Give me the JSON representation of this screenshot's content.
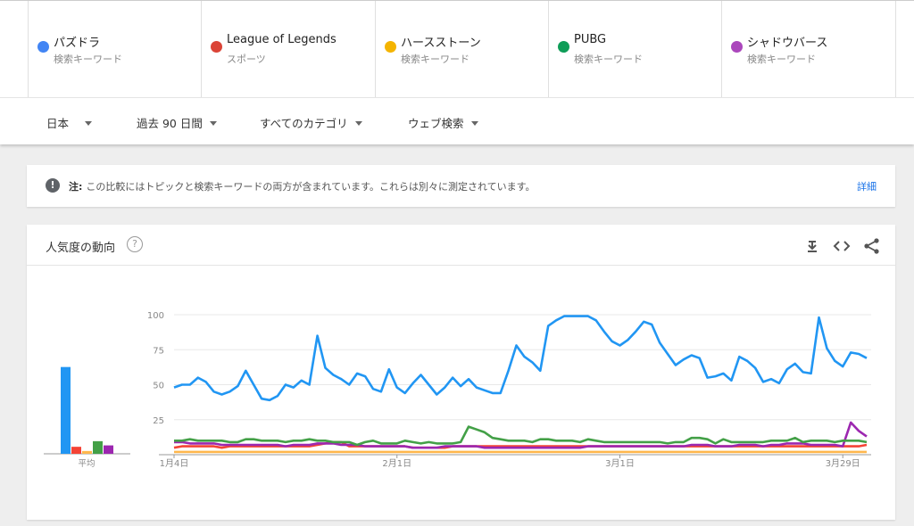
{
  "terms": [
    {
      "name": "パズドラ",
      "type": "検索キーワード",
      "color": "#4285f4"
    },
    {
      "name": "League of Legends",
      "type": "スポーツ",
      "color": "#db4437"
    },
    {
      "name": "ハースストーン",
      "type": "検索キーワード",
      "color": "#f4b400"
    },
    {
      "name": "PUBG",
      "type": "検索キーワード",
      "color": "#0f9d58"
    },
    {
      "name": "シャドウバース",
      "type": "検索キーワード",
      "color": "#ab47bc"
    }
  ],
  "filters": {
    "region": "日本",
    "period": "過去 90 日間",
    "category": "すべてのカテゴリ",
    "search_type": "ウェブ検索"
  },
  "notice": {
    "label": "注:",
    "text": "この比較にはトピックと検索キーワードの両方が含まれています。これらは別々に測定されています。",
    "link": "詳細"
  },
  "card": {
    "title": "人気度の動向",
    "icons": [
      "download-icon",
      "embed-icon",
      "share-icon"
    ]
  },
  "chart_data": {
    "type": "line",
    "ylim": [
      0,
      100
    ],
    "yticks": [
      25,
      50,
      75,
      100
    ],
    "xtick_labels": [
      "1月4日",
      "2月1日",
      "3月1日",
      "3月29日"
    ],
    "xtick_index": [
      0,
      28,
      56,
      84
    ],
    "average_label": "平均",
    "averages": [
      {
        "name": "パズドラ",
        "value": 62,
        "color": "#2196f3"
      },
      {
        "name": "League of Legends",
        "value": 5,
        "color": "#f44336"
      },
      {
        "name": "ハースストーン",
        "value": 2,
        "color": "#ffb74d"
      },
      {
        "name": "PUBG",
        "value": 9,
        "color": "#43a047"
      },
      {
        "name": "シャドウバース",
        "value": 6,
        "color": "#9c27b0"
      }
    ],
    "series": [
      {
        "name": "パズドラ",
        "color": "#2196f3",
        "values": [
          48,
          50,
          50,
          55,
          52,
          45,
          43,
          45,
          49,
          60,
          50,
          40,
          39,
          42,
          50,
          48,
          53,
          50,
          85,
          62,
          57,
          54,
          50,
          58,
          56,
          47,
          45,
          61,
          48,
          44,
          51,
          57,
          50,
          43,
          48,
          55,
          49,
          54,
          48,
          46,
          44,
          44,
          60,
          78,
          70,
          66,
          60,
          92,
          96,
          99,
          99,
          99,
          99,
          96,
          88,
          81,
          78,
          82,
          88,
          95,
          93,
          80,
          72,
          64,
          68,
          71,
          69,
          55,
          56,
          58,
          53,
          70,
          67,
          62,
          52,
          54,
          51,
          61,
          65,
          59,
          58,
          98,
          76,
          67,
          63,
          73,
          72,
          69
        ]
      },
      {
        "name": "PUBG",
        "color": "#43a047",
        "values": [
          10,
          10,
          11,
          10,
          10,
          10,
          10,
          9,
          9,
          11,
          11,
          10,
          10,
          10,
          9,
          10,
          10,
          11,
          10,
          10,
          9,
          9,
          9,
          7,
          9,
          10,
          8,
          8,
          8,
          10,
          9,
          8,
          9,
          8,
          8,
          8,
          9,
          20,
          18,
          16,
          12,
          11,
          10,
          10,
          10,
          9,
          11,
          11,
          10,
          10,
          10,
          9,
          11,
          10,
          9,
          9,
          9,
          9,
          9,
          9,
          9,
          9,
          8,
          9,
          9,
          12,
          12,
          11,
          8,
          11,
          9,
          9,
          9,
          9,
          9,
          10,
          10,
          10,
          12,
          9,
          10,
          10,
          10,
          9,
          10,
          10,
          10,
          9
        ]
      },
      {
        "name": "シャドウバース",
        "color": "#9c27b0",
        "values": [
          9,
          9,
          8,
          8,
          8,
          8,
          7,
          7,
          7,
          7,
          7,
          7,
          7,
          7,
          6,
          7,
          7,
          7,
          8,
          8,
          8,
          7,
          7,
          7,
          6,
          6,
          6,
          6,
          6,
          6,
          5,
          5,
          5,
          5,
          6,
          6,
          6,
          6,
          6,
          5,
          5,
          5,
          5,
          5,
          5,
          5,
          5,
          5,
          5,
          5,
          5,
          5,
          6,
          6,
          6,
          6,
          6,
          6,
          6,
          6,
          6,
          6,
          6,
          6,
          6,
          7,
          7,
          7,
          6,
          6,
          6,
          7,
          7,
          7,
          6,
          7,
          7,
          8,
          8,
          8,
          7,
          7,
          7,
          7,
          6,
          23,
          17,
          13
        ]
      },
      {
        "name": "League of Legends",
        "color": "#f44336",
        "values": [
          5,
          6,
          6,
          6,
          6,
          6,
          5,
          6,
          6,
          6,
          6,
          6,
          6,
          6,
          6,
          6,
          6,
          6,
          7,
          8,
          9,
          9,
          6,
          6,
          6,
          6,
          6,
          6,
          6,
          6,
          5,
          5,
          5,
          5,
          5,
          6,
          6,
          6,
          6,
          6,
          6,
          6,
          6,
          6,
          6,
          6,
          6,
          6,
          6,
          6,
          6,
          6,
          6,
          6,
          6,
          6,
          6,
          6,
          6,
          6,
          6,
          6,
          6,
          6,
          6,
          6,
          6,
          6,
          6,
          6,
          6,
          6,
          6,
          6,
          6,
          6,
          6,
          6,
          6,
          6,
          6,
          6,
          6,
          6,
          6,
          6,
          6,
          7
        ]
      },
      {
        "name": "ハースストーン",
        "color": "#ffb74d",
        "values": [
          2,
          2,
          2,
          2,
          2,
          2,
          2,
          2,
          2,
          2,
          2,
          2,
          2,
          2,
          2,
          2,
          2,
          2,
          2,
          2,
          2,
          2,
          2,
          2,
          2,
          2,
          2,
          2,
          2,
          2,
          2,
          2,
          2,
          2,
          2,
          2,
          2,
          2,
          2,
          2,
          2,
          2,
          2,
          2,
          2,
          2,
          2,
          2,
          2,
          2,
          2,
          2,
          2,
          2,
          2,
          2,
          2,
          2,
          2,
          2,
          2,
          2,
          2,
          2,
          2,
          2,
          2,
          2,
          2,
          2,
          2,
          2,
          2,
          2,
          2,
          2,
          2,
          2,
          2,
          2,
          2,
          2,
          2,
          2,
          2,
          2,
          2,
          2
        ]
      }
    ]
  }
}
